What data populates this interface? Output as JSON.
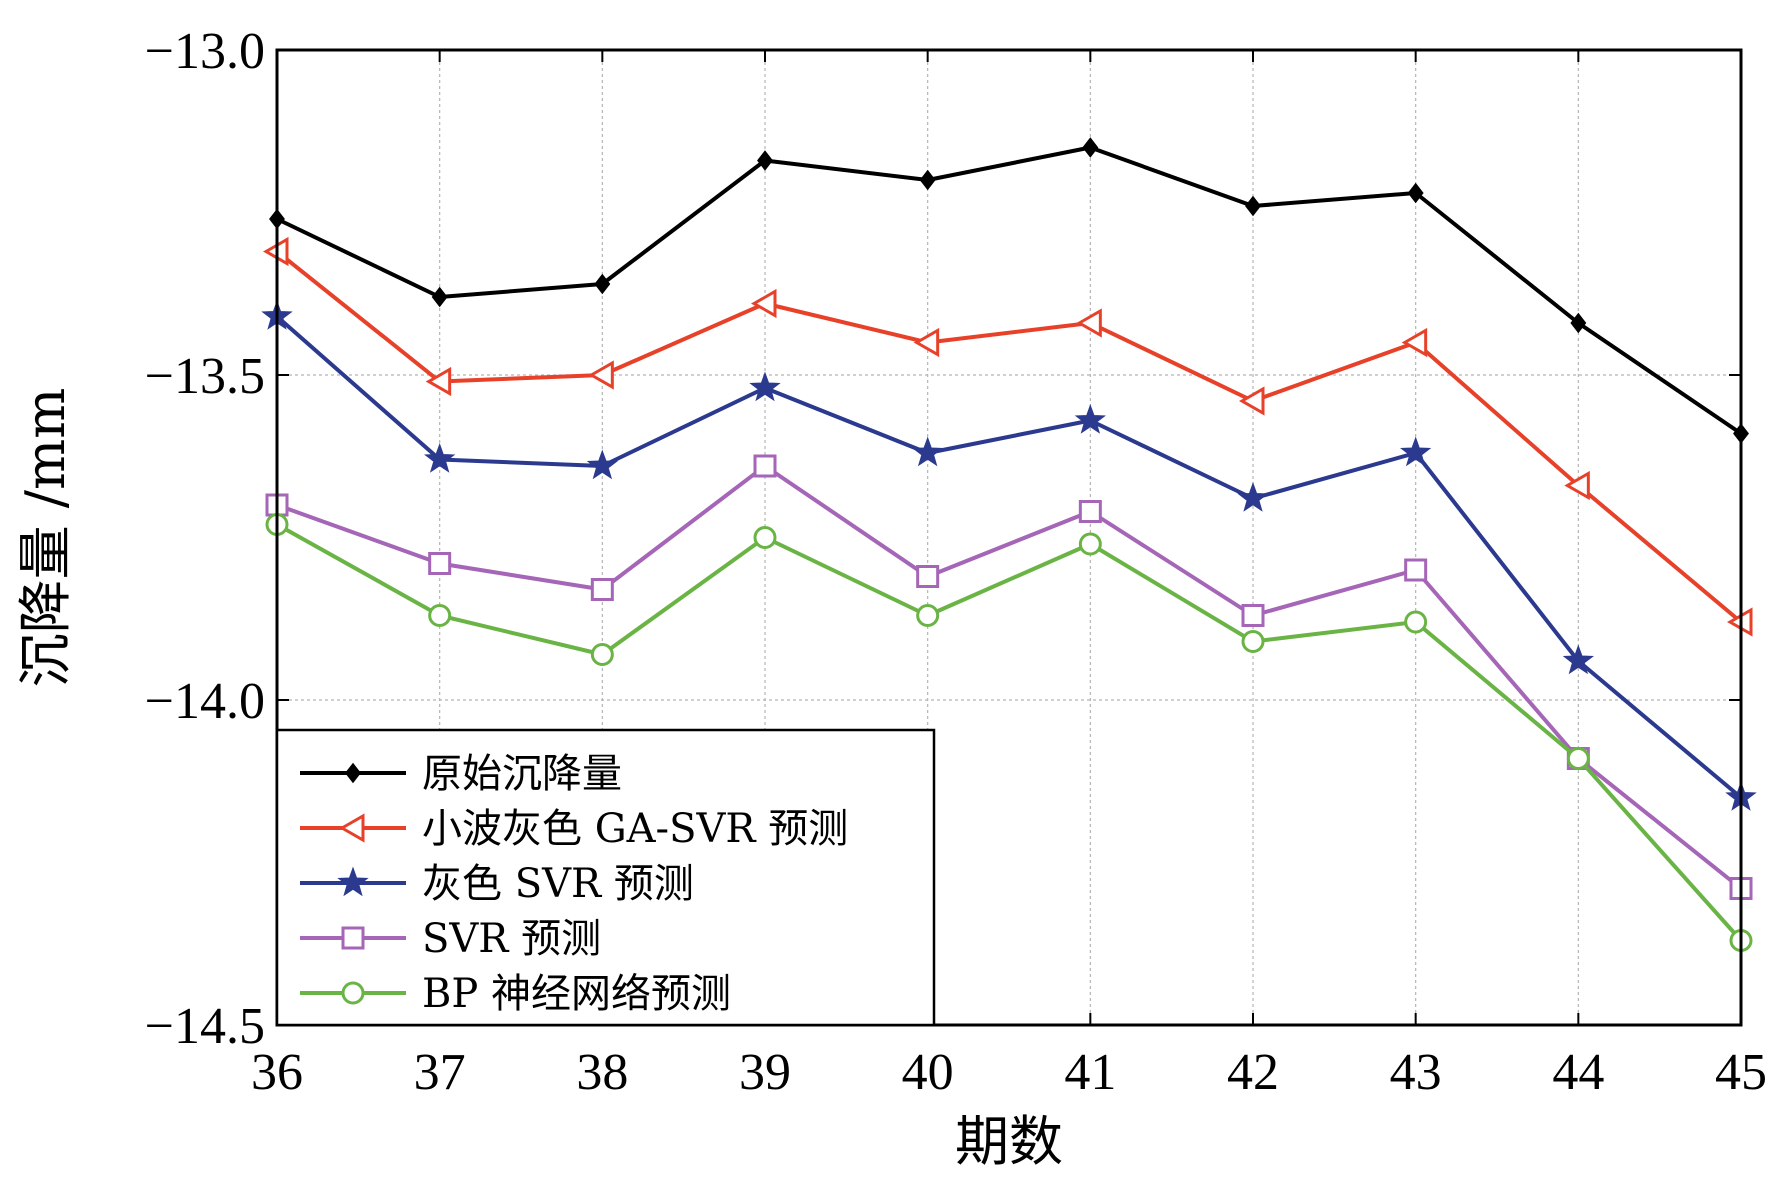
{
  "chart_data": {
    "type": "line",
    "xlabel": "期数",
    "ylabel": "沉降量 /mm",
    "x": [
      36,
      37,
      38,
      39,
      40,
      41,
      42,
      43,
      44,
      45
    ],
    "xlim": [
      36,
      45
    ],
    "ylim": [
      -14.5,
      -13.0
    ],
    "xticks": [
      "36",
      "37",
      "38",
      "39",
      "40",
      "41",
      "42",
      "43",
      "44",
      "45"
    ],
    "yticks": [
      -13.0,
      -13.5,
      -14.0,
      -14.5
    ],
    "ytick_labels": [
      "−13.0",
      "−13.5",
      "−14.0",
      "−14.5"
    ],
    "grid": true,
    "legend_position": "bottom-left",
    "series": [
      {
        "name": "原始沉降量",
        "color": "#000000",
        "marker": "diamond",
        "values": [
          -13.26,
          -13.38,
          -13.36,
          -13.17,
          -13.2,
          -13.15,
          -13.24,
          -13.22,
          -13.42,
          -13.59
        ]
      },
      {
        "name": "小波灰色 GA-SVR 预测",
        "color": "#e8412a",
        "marker": "triangle-left",
        "values": [
          -13.31,
          -13.51,
          -13.5,
          -13.39,
          -13.45,
          -13.42,
          -13.54,
          -13.45,
          -13.67,
          -13.88
        ]
      },
      {
        "name": "灰色 SVR 预测",
        "color": "#2b3a8f",
        "marker": "star",
        "values": [
          -13.41,
          -13.63,
          -13.64,
          -13.52,
          -13.62,
          -13.57,
          -13.69,
          -13.62,
          -13.94,
          -14.15
        ]
      },
      {
        "name": "SVR 预测",
        "color": "#a566b7",
        "marker": "square",
        "values": [
          -13.7,
          -13.79,
          -13.83,
          -13.64,
          -13.81,
          -13.71,
          -13.87,
          -13.8,
          -14.09,
          -14.29
        ]
      },
      {
        "name": "BP 神经网络预测",
        "color": "#6ab445",
        "marker": "circle",
        "values": [
          -13.73,
          -13.87,
          -13.93,
          -13.75,
          -13.87,
          -13.76,
          -13.91,
          -13.88,
          -14.09,
          -14.37
        ]
      }
    ]
  }
}
